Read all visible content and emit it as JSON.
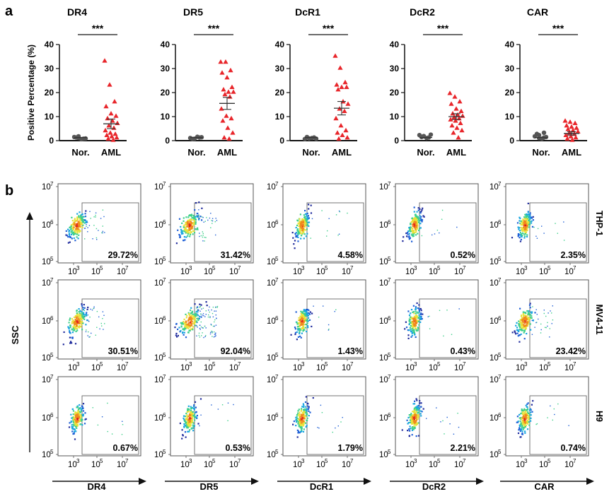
{
  "panels": {
    "a": "a",
    "b": "b"
  },
  "chart_data": [
    {
      "type": "scatter",
      "panel": "a",
      "ylabel": "Positive Percentage (%)",
      "ylim": [
        0,
        40
      ],
      "yticks": [
        0,
        10,
        20,
        30,
        40
      ],
      "categories": [
        "Nor.",
        "AML"
      ],
      "significance": "***",
      "charts": [
        {
          "title": "DR4",
          "nor": [
            0.8,
            0.5,
            1.2,
            0.3,
            1.0,
            0.6,
            1.5
          ],
          "aml": [
            33,
            23,
            16,
            14,
            11,
            10,
            9,
            8,
            7,
            6,
            5,
            4,
            3,
            2.5,
            2,
            1.5,
            1,
            0.5,
            0
          ],
          "mean": 7.0,
          "sem": 2.0
        },
        {
          "title": "DR5",
          "nor": [
            0.5,
            1.0,
            0.8,
            1.3,
            0.4,
            1.1
          ],
          "aml": [
            32.5,
            32.5,
            29,
            28,
            26,
            22,
            21,
            20,
            20,
            19,
            18,
            13,
            10,
            9,
            8,
            5,
            3,
            1,
            0.5
          ],
          "mean": 15.5,
          "sem": 2.5
        },
        {
          "title": "DcR1",
          "nor": [
            0.6,
            1.0,
            0.4,
            0.8,
            1.2,
            0.5
          ],
          "aml": [
            35,
            30,
            24,
            23,
            22,
            22,
            21,
            16,
            15,
            13,
            12,
            9,
            6,
            4,
            3,
            2,
            1,
            0.5
          ],
          "mean": 13.5,
          "sem": 2.8
        },
        {
          "title": "DcR2",
          "nor": [
            1.5,
            1.0,
            2.0,
            0.8,
            1.2,
            2.2,
            1.6
          ],
          "aml": [
            19.5,
            18,
            16,
            15,
            13,
            12,
            11,
            10.5,
            10,
            9.5,
            9,
            8.5,
            8,
            7,
            6,
            5,
            4,
            3,
            1
          ],
          "mean": 10.0,
          "sem": 1.2
        },
        {
          "title": "CAR",
          "nor": [
            2.0,
            1.0,
            1.5,
            0.5,
            2.5,
            1.2,
            0.8,
            3.0
          ],
          "aml": [
            8,
            7.5,
            7,
            6,
            5.5,
            5,
            4.5,
            4,
            3.5,
            3,
            2.5,
            2,
            1.5,
            1,
            0.5,
            0
          ],
          "mean": 3.0,
          "sem": 0.7
        }
      ]
    },
    {
      "type": "scatter",
      "panel": "b",
      "subtype": "flow-cytometry",
      "ylabel": "SSC",
      "x_tick_labels": [
        "10",
        "10",
        "10"
      ],
      "x_tick_exponents": [
        "3",
        "5",
        "7"
      ],
      "y_tick_labels": [
        "10",
        "10",
        "10"
      ],
      "y_tick_exponents": [
        "5",
        "6",
        "7"
      ],
      "columns": [
        "DR4",
        "DR5",
        "DcR1",
        "DcR2",
        "CAR"
      ],
      "rows": [
        "THP-1",
        "MV4-11",
        "H9"
      ],
      "percentages": [
        [
          "29.72%",
          "31.42%",
          "4.58%",
          "0.52%",
          "2.35%"
        ],
        [
          "30.51%",
          "92.04%",
          "1.43%",
          "0.43%",
          "23.42%"
        ],
        [
          "0.67%",
          "0.53%",
          "1.79%",
          "2.21%",
          "0.74%"
        ]
      ],
      "percent_values": [
        [
          29.72,
          31.42,
          4.58,
          0.52,
          2.35
        ],
        [
          30.51,
          92.04,
          1.43,
          0.43,
          23.42
        ],
        [
          0.67,
          0.53,
          1.79,
          2.21,
          0.74
        ]
      ]
    }
  ],
  "colors": {
    "nor": "#555555",
    "aml": "#e8262b",
    "axis": "#111111",
    "density": [
      "#1f2a9c",
      "#1e5fd6",
      "#19a6e0",
      "#3fd08a",
      "#e8e23a",
      "#f08a1d",
      "#e02020"
    ]
  }
}
